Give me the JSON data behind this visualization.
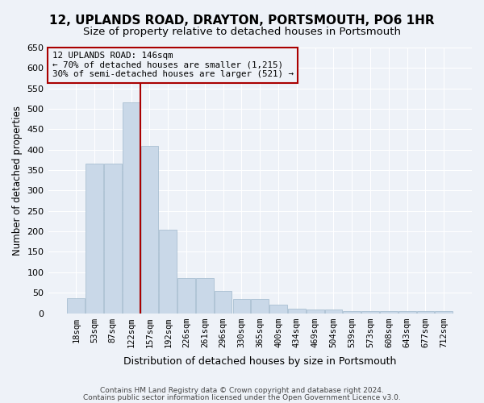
{
  "title1": "12, UPLANDS ROAD, DRAYTON, PORTSMOUTH, PO6 1HR",
  "title2": "Size of property relative to detached houses in Portsmouth",
  "xlabel": "Distribution of detached houses by size in Portsmouth",
  "ylabel": "Number of detached properties",
  "bar_values": [
    37,
    365,
    365,
    515,
    410,
    205,
    85,
    85,
    55,
    35,
    35,
    20,
    10,
    8,
    8,
    5,
    5,
    5,
    5,
    5,
    5
  ],
  "bar_labels": [
    "18sqm",
    "53sqm",
    "87sqm",
    "122sqm",
    "157sqm",
    "192sqm",
    "226sqm",
    "261sqm",
    "296sqm",
    "330sqm",
    "365sqm",
    "400sqm",
    "434sqm",
    "469sqm",
    "504sqm",
    "539sqm",
    "573sqm",
    "608sqm",
    "643sqm",
    "677sqm",
    "712sqm"
  ],
  "vline_position": 3.5,
  "annotation_title": "12 UPLANDS ROAD: 146sqm",
  "annotation_line1": "← 70% of detached houses are smaller (1,215)",
  "annotation_line2": "30% of semi-detached houses are larger (521) →",
  "bar_color": "#c9d8e8",
  "bar_edgecolor": "#a0b8cc",
  "vline_color": "#aa0000",
  "annotation_box_color": "#aa0000",
  "background_color": "#eef2f8",
  "footer1": "Contains HM Land Registry data © Crown copyright and database right 2024.",
  "footer2": "Contains public sector information licensed under the Open Government Licence v3.0.",
  "ylim": [
    0,
    650
  ],
  "yticks": [
    0,
    50,
    100,
    150,
    200,
    250,
    300,
    350,
    400,
    450,
    500,
    550,
    600,
    650
  ]
}
